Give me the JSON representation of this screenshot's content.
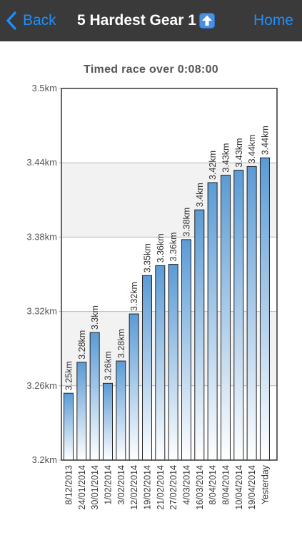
{
  "nav": {
    "back_label": "Back",
    "title": "5 Hardest Gear 1",
    "home_label": "Home"
  },
  "icons": {
    "back": "chevron-left-icon",
    "title_badge": "up-arrow-icon"
  },
  "colors": {
    "nav_background": "#3a3a3a",
    "nav_link": "#1e90ff",
    "bar_top": "#5b9bd5",
    "bar_bottom": "#ffffff",
    "plot_background": "#f2f2f2"
  },
  "chart_data": {
    "type": "bar",
    "title": "Timed race over 0:08:00",
    "xlabel": "",
    "ylabel": "",
    "ylim": [
      3.2,
      3.5
    ],
    "yticks": [
      3.2,
      3.26,
      3.32,
      3.38,
      3.44,
      3.5
    ],
    "ytick_labels": [
      "3.2km",
      "3.26km",
      "3.32km",
      "3.38km",
      "3.44km",
      "3.5km"
    ],
    "grid": true,
    "categories": [
      "8/12/2013",
      "24/01/2014",
      "30/01/2014",
      "1/02/2014",
      "3/02/2014",
      "12/02/2014",
      "19/02/2014",
      "21/02/2014",
      "27/02/2014",
      "4/03/2014",
      "16/03/2014",
      "8/04/2014",
      "8/04/2014",
      "10/04/2014",
      "19/04/2014",
      "Yesterday"
    ],
    "values": [
      3.254,
      3.279,
      3.303,
      3.262,
      3.28,
      3.318,
      3.349,
      3.357,
      3.358,
      3.378,
      3.402,
      3.424,
      3.43,
      3.434,
      3.437,
      3.444
    ],
    "labels": [
      "3.25km",
      "3.28km",
      "3.3km",
      "3.26km",
      "3.28km",
      "3.32km",
      "3.35km",
      "3.36km",
      "3.36km",
      "3.38km",
      "3.4km",
      "3.42km",
      "3.43km",
      "3.43km",
      "3.44km",
      "3.44km"
    ]
  }
}
